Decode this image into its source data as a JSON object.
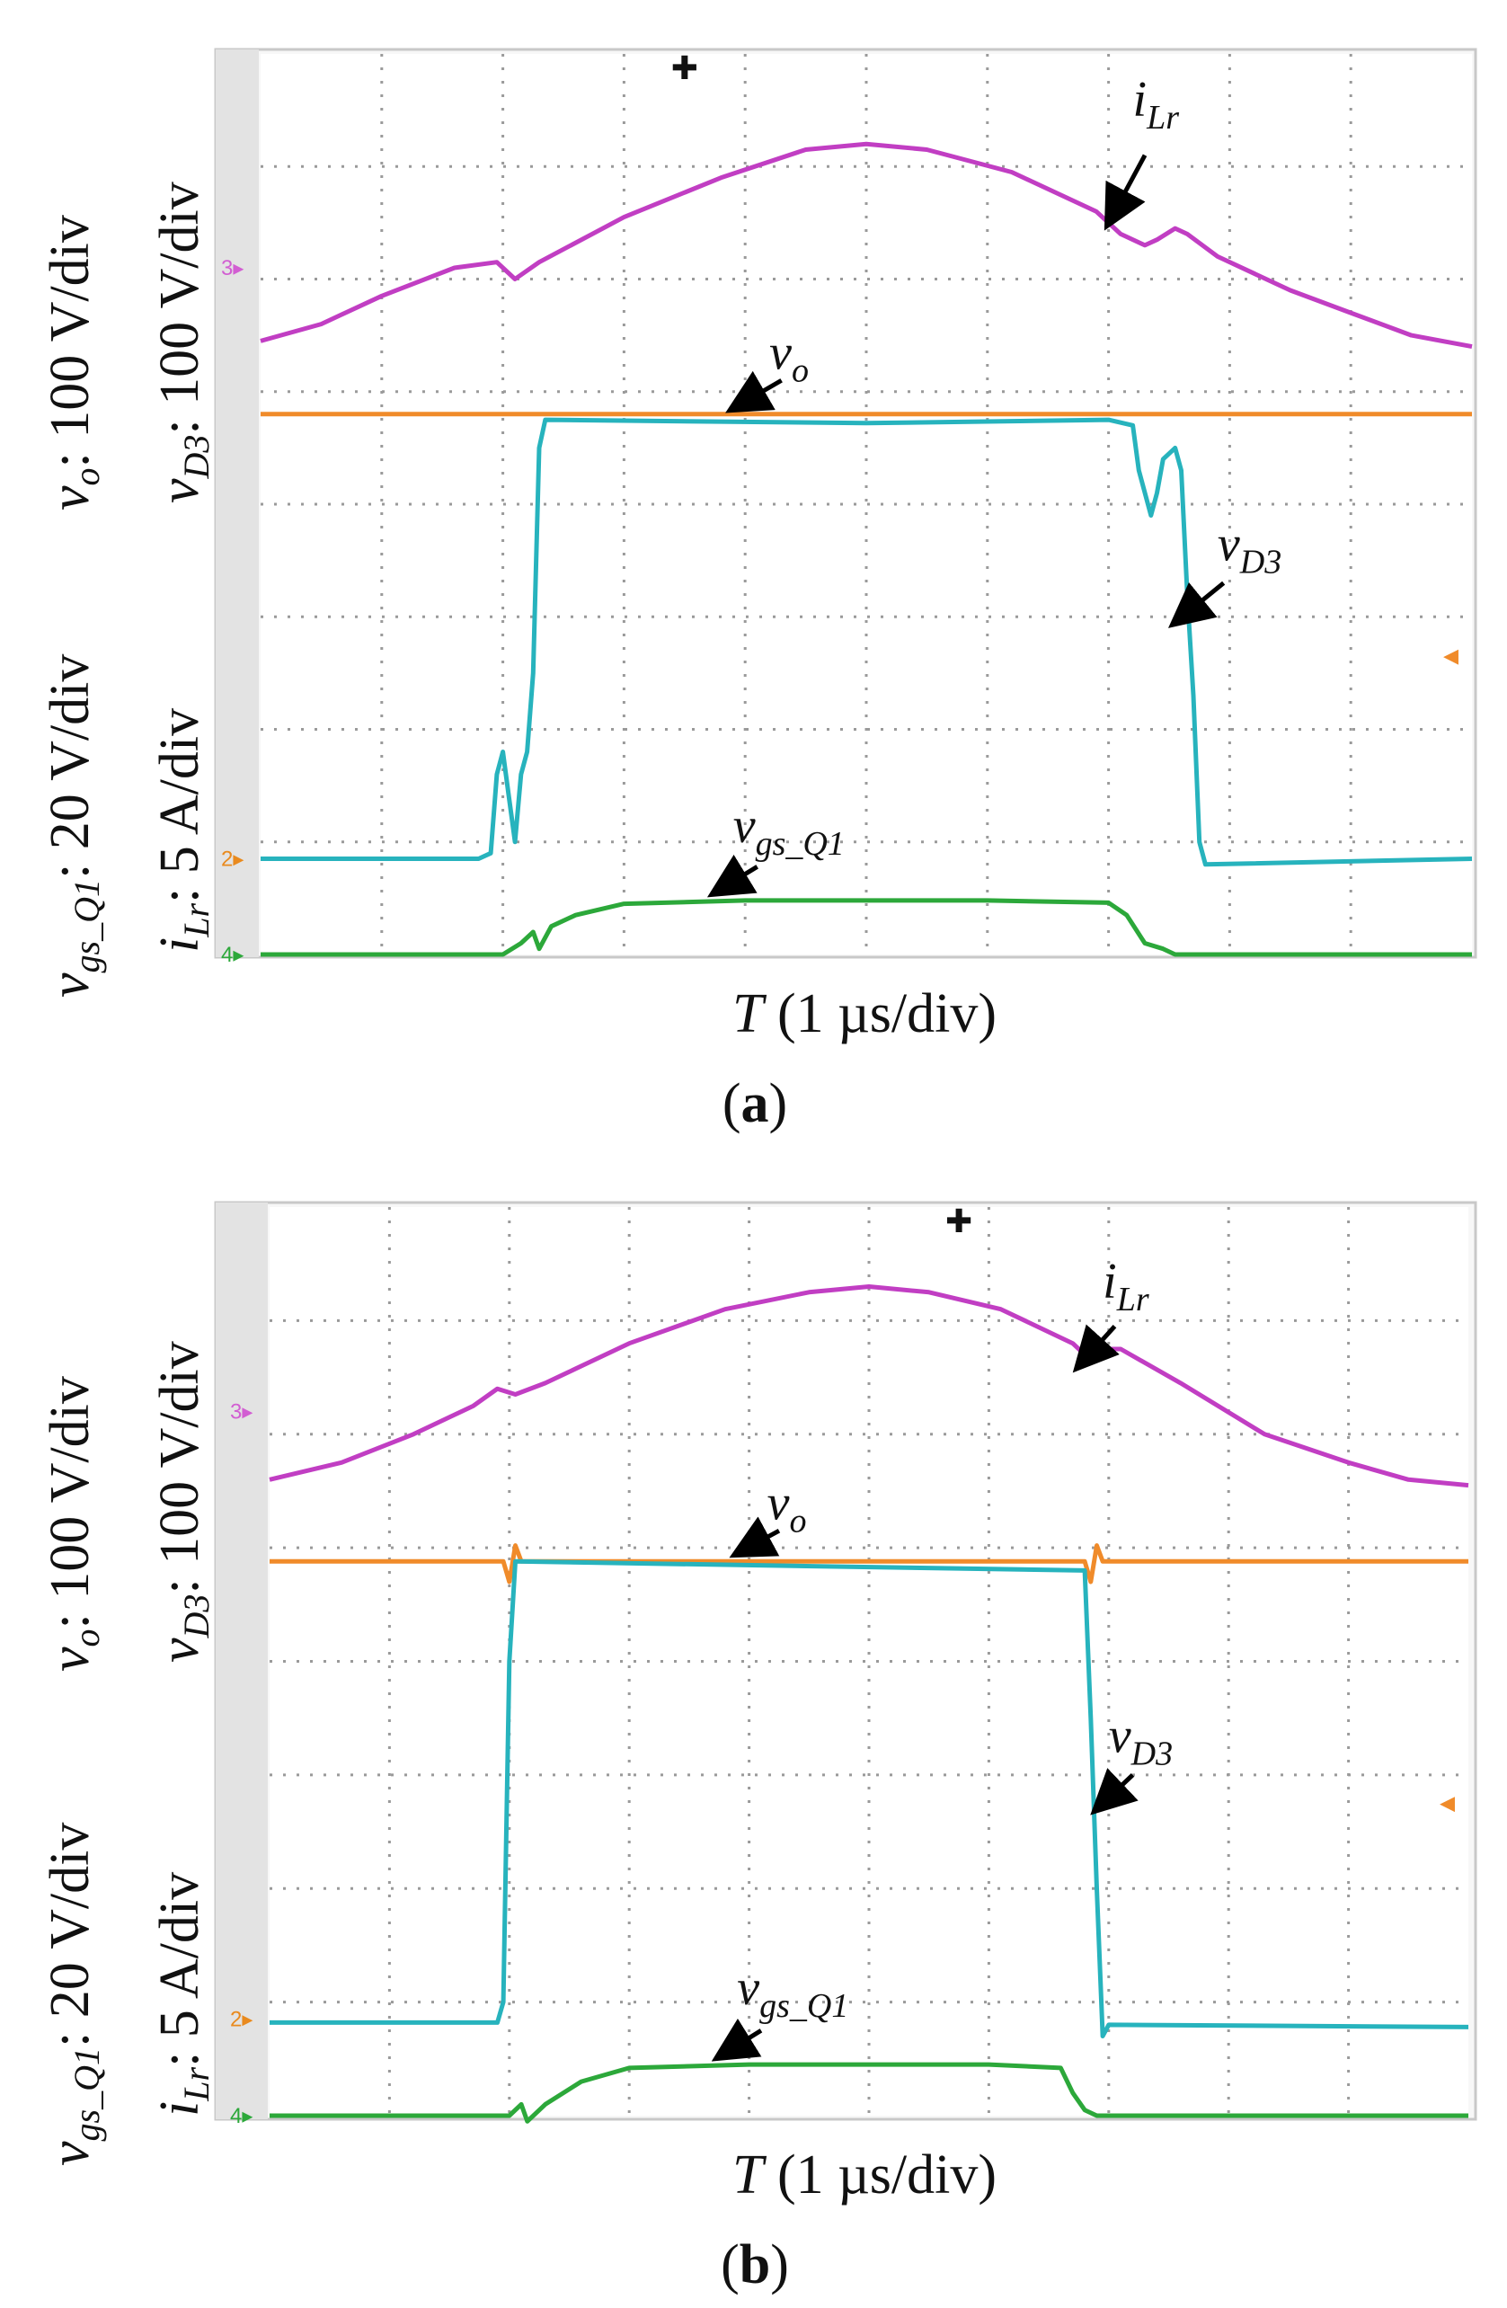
{
  "chart_data": [
    {
      "type": "line",
      "caption_letter": "a",
      "title": "",
      "xlabel": {
        "sym": "T",
        "unit": " (1 µs/div)"
      },
      "x_range": [
        0,
        10
      ],
      "y_range": [
        0,
        8
      ],
      "grid_divisions": {
        "x": 10,
        "y": 8
      },
      "left_labels": {
        "outer_top": {
          "sym": "v",
          "sub": "o",
          "text": ": 100 V/div"
        },
        "inner_top": {
          "sym": "v",
          "sub": "D3",
          "text": ": 100 V/div"
        },
        "outer_bottom": {
          "sym": "v",
          "sub": "gs_Q1",
          "text": ": 20 V/div"
        },
        "inner_bottom": {
          "sym": "i",
          "sub": "Lr",
          "text": ": 5 A/div"
        }
      },
      "channel_markers": [
        {
          "label": "3",
          "level": 6.1,
          "color": "#d25ed2"
        },
        {
          "label": "2",
          "level": 0.85,
          "color": "#e98a1e"
        },
        {
          "label": "4",
          "level": 0.0,
          "color": "#2ca83a"
        }
      ],
      "offset_marker_level": 2.65,
      "trigger_marker_x": 3.5,
      "series": [
        {
          "name": "iLr",
          "color": "#c13ec3",
          "points": [
            [
              0,
              5.45
            ],
            [
              0.5,
              5.6
            ],
            [
              1.0,
              5.85
            ],
            [
              1.6,
              6.1
            ],
            [
              1.95,
              6.15
            ],
            [
              2.1,
              6.0
            ],
            [
              2.3,
              6.15
            ],
            [
              3.0,
              6.55
            ],
            [
              3.8,
              6.9
            ],
            [
              4.5,
              7.15
            ],
            [
              5.0,
              7.2
            ],
            [
              5.5,
              7.15
            ],
            [
              6.2,
              6.95
            ],
            [
              6.9,
              6.6
            ],
            [
              7.1,
              6.4
            ],
            [
              7.3,
              6.3
            ],
            [
              7.4,
              6.35
            ],
            [
              7.55,
              6.45
            ],
            [
              7.65,
              6.4
            ],
            [
              7.9,
              6.2
            ],
            [
              8.5,
              5.9
            ],
            [
              9.0,
              5.7
            ],
            [
              9.5,
              5.5
            ],
            [
              10,
              5.4
            ]
          ],
          "label": {
            "sym": "i",
            "sub": "Lr",
            "at": [
              7.2,
              7.45
            ],
            "arrow": [
              7.3,
              7.1,
              7.0,
              6.5
            ]
          }
        },
        {
          "name": "vo",
          "color": "#f08b2a",
          "points": [
            [
              0,
              4.8
            ],
            [
              10,
              4.8
            ]
          ],
          "label": {
            "sym": "v",
            "sub": "o",
            "at": [
              4.2,
              5.2
            ],
            "arrow": [
              4.3,
              5.1,
              3.9,
              4.85
            ]
          }
        },
        {
          "name": "vD3",
          "color": "#27b3bd",
          "points": [
            [
              0,
              0.85
            ],
            [
              1.8,
              0.85
            ],
            [
              1.9,
              0.9
            ],
            [
              1.95,
              1.6
            ],
            [
              2.0,
              1.8
            ],
            [
              2.05,
              1.4
            ],
            [
              2.1,
              1.0
            ],
            [
              2.15,
              1.6
            ],
            [
              2.2,
              1.8
            ],
            [
              2.25,
              2.5
            ],
            [
              2.3,
              4.5
            ],
            [
              2.35,
              4.75
            ],
            [
              5.0,
              4.72
            ],
            [
              7.0,
              4.75
            ],
            [
              7.2,
              4.7
            ],
            [
              7.25,
              4.3
            ],
            [
              7.35,
              3.9
            ],
            [
              7.4,
              4.1
            ],
            [
              7.45,
              4.4
            ],
            [
              7.55,
              4.5
            ],
            [
              7.6,
              4.3
            ],
            [
              7.65,
              3.2
            ],
            [
              7.7,
              2.3
            ],
            [
              7.75,
              1.0
            ],
            [
              7.8,
              0.8
            ],
            [
              10,
              0.85
            ]
          ],
          "label": {
            "sym": "v",
            "sub": "D3",
            "at": [
              7.9,
              3.5
            ],
            "arrow": [
              7.95,
              3.3,
              7.55,
              2.95
            ]
          }
        },
        {
          "name": "vgs_Q1",
          "color": "#2ca83a",
          "points": [
            [
              0,
              0.0
            ],
            [
              2.0,
              0.0
            ],
            [
              2.15,
              0.1
            ],
            [
              2.25,
              0.2
            ],
            [
              2.3,
              0.05
            ],
            [
              2.4,
              0.25
            ],
            [
              2.6,
              0.35
            ],
            [
              3.0,
              0.45
            ],
            [
              4.0,
              0.48
            ],
            [
              6.0,
              0.48
            ],
            [
              7.0,
              0.46
            ],
            [
              7.15,
              0.35
            ],
            [
              7.3,
              0.1
            ],
            [
              7.45,
              0.05
            ],
            [
              7.55,
              0.0
            ],
            [
              10,
              0.0
            ]
          ],
          "label": {
            "sym": "v",
            "sub": "gs_Q1",
            "at": [
              3.9,
              1.0
            ],
            "arrow": [
              4.1,
              0.78,
              3.75,
              0.55
            ]
          }
        }
      ]
    },
    {
      "type": "line",
      "caption_letter": "b",
      "title": "",
      "xlabel": {
        "sym": "T",
        "unit": " (1 µs/div)"
      },
      "x_range": [
        0,
        10
      ],
      "y_range": [
        0,
        8
      ],
      "grid_divisions": {
        "x": 10,
        "y": 8
      },
      "left_labels": {
        "outer_top": {
          "sym": "v",
          "sub": "o",
          "text": ": 100 V/div"
        },
        "inner_top": {
          "sym": "v",
          "sub": "D3",
          "text": ": 100 V/div"
        },
        "outer_bottom": {
          "sym": "v",
          "sub": "gs_Q1",
          "text": ": 20 V/div"
        },
        "inner_bottom": {
          "sym": "i",
          "sub": "Lr",
          "text": ": 5 A/div"
        }
      },
      "channel_markers": [
        {
          "label": "3",
          "level": 6.2,
          "color": "#d25ed2"
        },
        {
          "label": "2",
          "level": 0.85,
          "color": "#e98a1e"
        },
        {
          "label": "4",
          "level": 0.0,
          "color": "#2ca83a"
        }
      ],
      "offset_marker_level": 2.75,
      "trigger_marker_x": 5.75,
      "series": [
        {
          "name": "iLr",
          "color": "#c13ec3",
          "points": [
            [
              0,
              5.6
            ],
            [
              0.6,
              5.75
            ],
            [
              1.2,
              6.0
            ],
            [
              1.7,
              6.25
            ],
            [
              1.9,
              6.4
            ],
            [
              2.05,
              6.35
            ],
            [
              2.3,
              6.45
            ],
            [
              3.0,
              6.8
            ],
            [
              3.8,
              7.1
            ],
            [
              4.5,
              7.25
            ],
            [
              5.0,
              7.3
            ],
            [
              5.5,
              7.25
            ],
            [
              6.1,
              7.1
            ],
            [
              6.7,
              6.8
            ],
            [
              6.85,
              6.65
            ],
            [
              6.95,
              6.75
            ],
            [
              7.1,
              6.75
            ],
            [
              7.6,
              6.45
            ],
            [
              8.3,
              6.0
            ],
            [
              9.0,
              5.75
            ],
            [
              9.5,
              5.6
            ],
            [
              10,
              5.55
            ]
          ],
          "label": {
            "sym": "i",
            "sub": "Lr",
            "at": [
              6.95,
              7.2
            ],
            "arrow": [
              7.05,
              6.95,
              6.75,
              6.6
            ]
          }
        },
        {
          "name": "vo",
          "color": "#f08b2a",
          "points": [
            [
              0,
              4.88
            ],
            [
              1.95,
              4.88
            ],
            [
              2.0,
              4.7
            ],
            [
              2.05,
              5.02
            ],
            [
              2.1,
              4.88
            ],
            [
              6.8,
              4.88
            ],
            [
              6.85,
              4.7
            ],
            [
              6.9,
              5.02
            ],
            [
              6.95,
              4.88
            ],
            [
              10,
              4.88
            ]
          ],
          "label": {
            "sym": "v",
            "sub": "o",
            "at": [
              4.15,
              5.25
            ],
            "arrow": [
              4.25,
              5.15,
              3.9,
              4.95
            ]
          }
        },
        {
          "name": "vD3",
          "color": "#27b3bd",
          "points": [
            [
              0,
              0.82
            ],
            [
              1.9,
              0.82
            ],
            [
              1.95,
              1.0
            ],
            [
              2.0,
              4.0
            ],
            [
              2.05,
              4.88
            ],
            [
              6.8,
              4.8
            ],
            [
              6.85,
              3.5
            ],
            [
              6.9,
              2.0
            ],
            [
              6.95,
              0.7
            ],
            [
              7.0,
              0.8
            ],
            [
              10,
              0.78
            ]
          ],
          "label": {
            "sym": "v",
            "sub": "D3",
            "at": [
              7.0,
              3.2
            ],
            "arrow": [
              7.2,
              3.0,
              6.9,
              2.7
            ]
          }
        },
        {
          "name": "vgs_Q1",
          "color": "#2ca83a",
          "points": [
            [
              0,
              0.0
            ],
            [
              2.0,
              0.0
            ],
            [
              2.1,
              0.1
            ],
            [
              2.15,
              -0.05
            ],
            [
              2.3,
              0.1
            ],
            [
              2.6,
              0.3
            ],
            [
              3.0,
              0.42
            ],
            [
              4.0,
              0.45
            ],
            [
              6.0,
              0.45
            ],
            [
              6.6,
              0.42
            ],
            [
              6.7,
              0.2
            ],
            [
              6.8,
              0.05
            ],
            [
              6.9,
              0.0
            ],
            [
              10,
              0.0
            ]
          ],
          "label": {
            "sym": "v",
            "sub": "gs_Q1",
            "at": [
              3.9,
              0.98
            ],
            "arrow": [
              4.1,
              0.75,
              3.75,
              0.52
            ]
          }
        }
      ]
    }
  ]
}
